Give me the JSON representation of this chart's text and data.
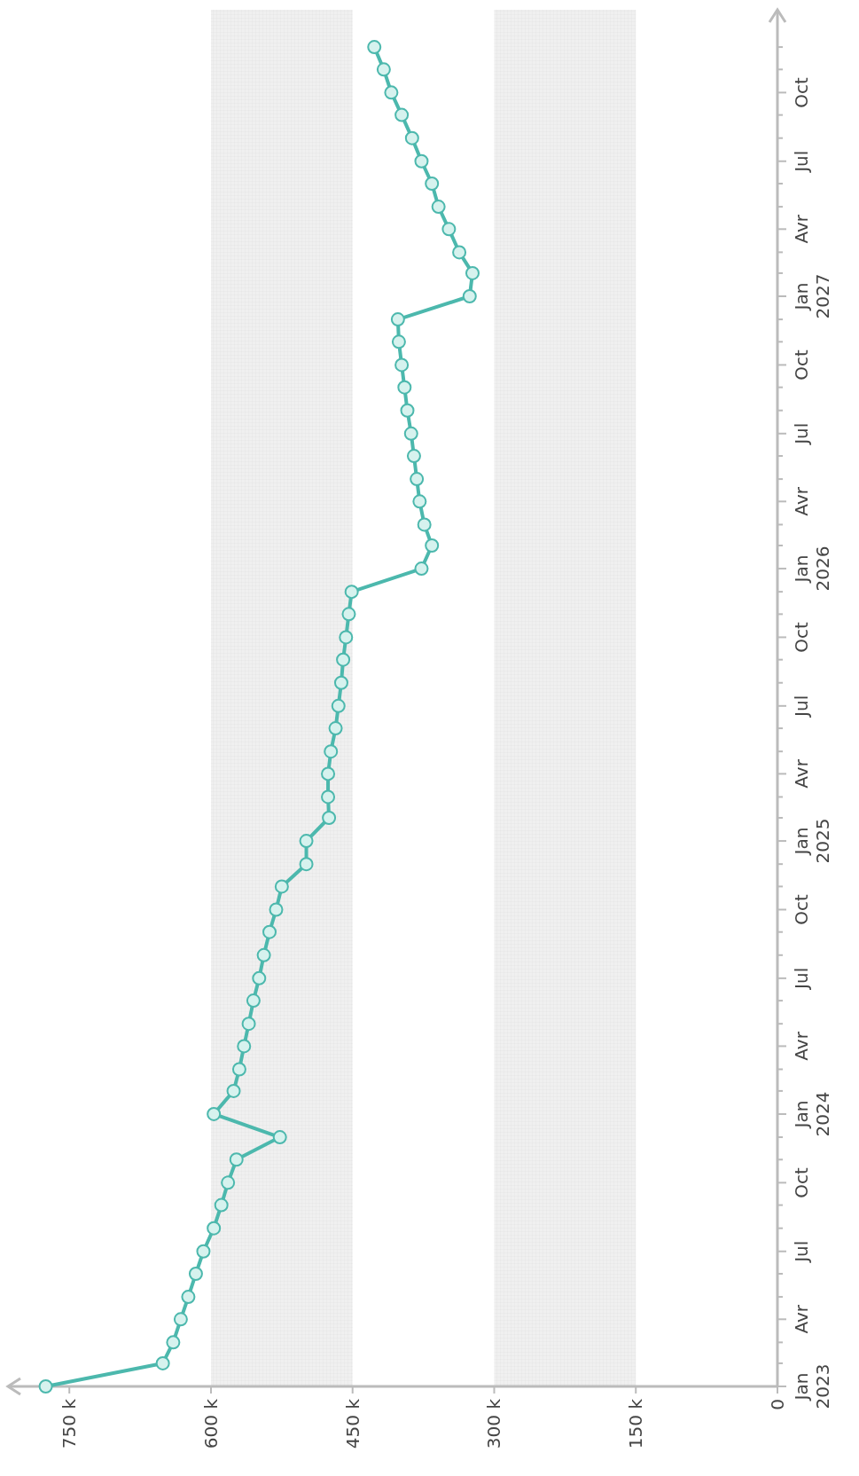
{
  "chart_data": {
    "type": "line",
    "marker": "circle",
    "line_style": "solid",
    "x": [
      "2023-01",
      "2023-02",
      "2023-03",
      "2023-04",
      "2023-05",
      "2023-06",
      "2023-07",
      "2023-08",
      "2023-09",
      "2023-10",
      "2023-11",
      "2023-12",
      "2024-01",
      "2024-02",
      "2024-03",
      "2024-04",
      "2024-05",
      "2024-06",
      "2024-07",
      "2024-08",
      "2024-09",
      "2024-10",
      "2024-11",
      "2024-12",
      "2025-01",
      "2025-02",
      "2025-03",
      "2025-04",
      "2025-05",
      "2025-06",
      "2025-07",
      "2025-08",
      "2025-09",
      "2025-10",
      "2025-11",
      "2025-12",
      "2026-01",
      "2026-02",
      "2026-03",
      "2026-04",
      "2026-05",
      "2026-06",
      "2026-07",
      "2026-08",
      "2026-09",
      "2026-10",
      "2026-11",
      "2026-12",
      "2027-01",
      "2027-02",
      "2027-03",
      "2027-04",
      "2027-05",
      "2027-06",
      "2027-07",
      "2027-08",
      "2027-09",
      "2027-10",
      "2027-11",
      "2027-12"
    ],
    "series": [
      {
        "color": "#4cb8ad",
        "values": [
          775000,
          651000,
          640000,
          632000,
          624000,
          616000,
          608000,
          597000,
          589000,
          582000,
          573000,
          527000,
          597000,
          576000,
          570000,
          565000,
          560000,
          555000,
          549000,
          544000,
          538000,
          531000,
          525000,
          499000,
          499000,
          475000,
          476000,
          476000,
          473000,
          468000,
          465000,
          462000,
          460000,
          457000,
          454000,
          451000,
          377000,
          366000,
          374000,
          379000,
          382000,
          385000,
          388000,
          392000,
          395000,
          398000,
          401000,
          402000,
          326000,
          323000,
          337000,
          348000,
          359000,
          366000,
          377000,
          387000,
          398000,
          409000,
          417000,
          427000
        ]
      }
    ],
    "orientation": "horizontal",
    "ylim": [
      "2023-01-01",
      "2028-01-20"
    ],
    "xlim": [
      815000,
      0
    ],
    "xticks": [
      0,
      {
        "value": 150000,
        "label": "150 k"
      },
      {
        "value": 300000,
        "label": "300 k"
      },
      {
        "value": 450000,
        "label": "450 k"
      },
      {
        "value": 600000,
        "label": "600 k"
      },
      {
        "value": 750000,
        "label": "750 k"
      }
    ],
    "yticks": [
      {
        "value": "2023-01-01",
        "label": "Jan\n2023"
      },
      {
        "value": "2023-02-01",
        "label": null
      },
      {
        "value": "2023-03-01",
        "label": null
      },
      {
        "value": "2023-04-01",
        "label": "Avr"
      },
      {
        "value": "2023-05-01",
        "label": null
      },
      {
        "value": "2023-06-01",
        "label": null
      },
      {
        "value": "2023-07-01",
        "label": "Jul"
      },
      {
        "value": "2023-08-01",
        "label": null
      },
      {
        "value": "2023-09-01",
        "label": null
      },
      {
        "value": "2023-10-01",
        "label": "Oct"
      },
      {
        "value": "2023-11-01",
        "label": null
      },
      {
        "value": "2023-12-01",
        "label": null
      },
      {
        "value": "2024-01-01",
        "label": "Jan\n2024"
      },
      {
        "value": "2024-02-01",
        "label": null
      },
      {
        "value": "2024-03-01",
        "label": null
      },
      {
        "value": "2024-04-01",
        "label": "Avr"
      },
      {
        "value": "2024-05-01",
        "label": null
      },
      {
        "value": "2024-06-01",
        "label": null
      },
      {
        "value": "2024-07-01",
        "label": "Jul"
      },
      {
        "value": "2024-08-01",
        "label": null
      },
      {
        "value": "2024-09-01",
        "label": null
      },
      {
        "value": "2024-10-01",
        "label": "Oct"
      },
      {
        "value": "2024-11-01",
        "label": null
      },
      {
        "value": "2024-12-01",
        "label": null
      },
      {
        "value": "2025-01-01",
        "label": "Jan\n2025"
      },
      {
        "value": "2025-02-01",
        "label": null
      },
      {
        "value": "2025-03-01",
        "label": null
      },
      {
        "value": "2025-04-01",
        "label": "Avr"
      },
      {
        "value": "2025-05-01",
        "label": null
      },
      {
        "value": "2025-06-01",
        "label": null
      },
      {
        "value": "2025-07-01",
        "label": "Jul"
      },
      {
        "value": "2025-08-01",
        "label": null
      },
      {
        "value": "2025-09-01",
        "label": null
      },
      {
        "value": "2025-10-01",
        "label": "Oct"
      },
      {
        "value": "2025-11-01",
        "label": null
      },
      {
        "value": "2025-12-01",
        "label": null
      },
      {
        "value": "2026-01-01",
        "label": "Jan\n2026"
      },
      {
        "value": "2026-02-01",
        "label": null
      },
      {
        "value": "2026-03-01",
        "label": null
      },
      {
        "value": "2026-04-01",
        "label": "Avr"
      },
      {
        "value": "2026-05-01",
        "label": null
      },
      {
        "value": "2026-06-01",
        "label": null
      },
      {
        "value": "2026-07-01",
        "label": "Jul"
      },
      {
        "value": "2026-08-01",
        "label": null
      },
      {
        "value": "2026-09-01",
        "label": null
      },
      {
        "value": "2026-10-01",
        "label": "Oct"
      },
      {
        "value": "2026-11-01",
        "label": null
      },
      {
        "value": "2026-12-01",
        "label": null
      },
      {
        "value": "2027-01-01",
        "label": "Jan\n2027"
      },
      {
        "value": "2027-02-01",
        "label": null
      },
      {
        "value": "2027-03-01",
        "label": null
      },
      {
        "value": "2027-04-01",
        "label": "Avr"
      },
      {
        "value": "2027-05-01",
        "label": null
      },
      {
        "value": "2027-06-01",
        "label": null
      },
      {
        "value": "2027-07-01",
        "label": "Jul"
      },
      {
        "value": "2027-08-01",
        "label": null
      },
      {
        "value": "2027-09-01",
        "label": null
      },
      {
        "value": "2027-10-01",
        "label": "Oct"
      },
      {
        "value": "2027-11-01",
        "label": null
      },
      {
        "value": "2027-12-01",
        "label": null
      }
    ],
    "bands": [
      {
        "axis": "x",
        "from": 450000,
        "to": 600000,
        "color": "#e6e6e6"
      },
      {
        "axis": "x",
        "from": 150000,
        "to": 300000,
        "color": "#e6e6e6"
      }
    ]
  }
}
